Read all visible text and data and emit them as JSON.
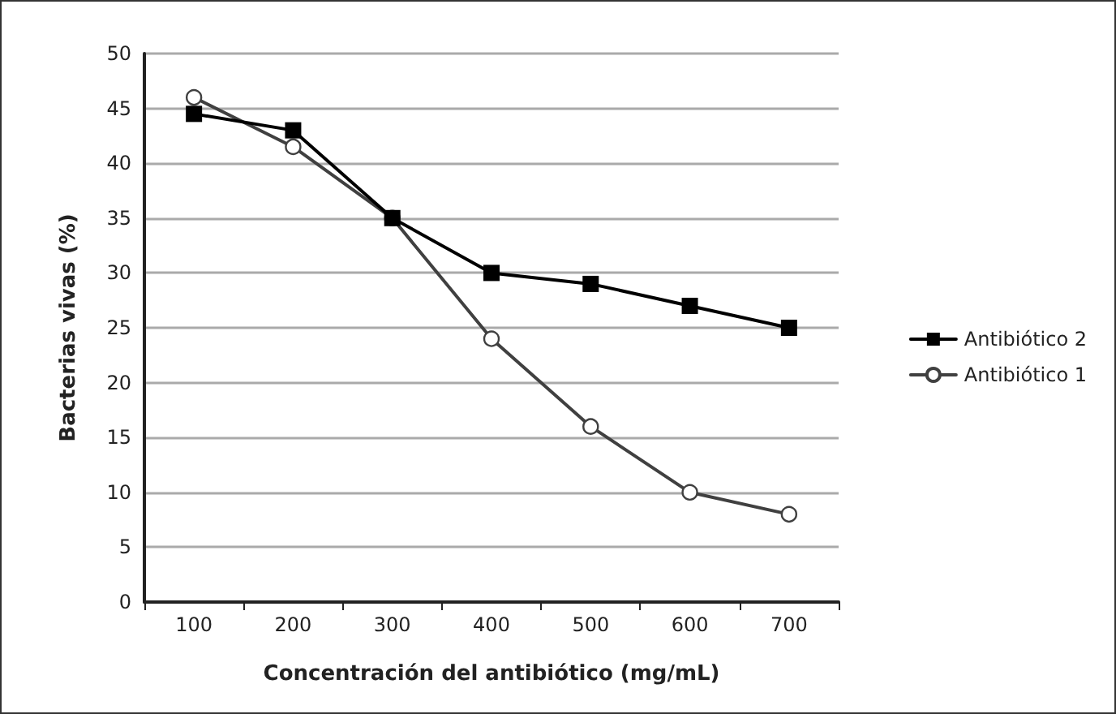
{
  "chart_data": {
    "type": "line",
    "xlabel": "Concentración del antibiótico (mg/mL)",
    "ylabel": "Bacterias vivas (%)",
    "categories": [
      "100",
      "200",
      "300",
      "400",
      "500",
      "600",
      "700"
    ],
    "series": [
      {
        "name": "Antibiótico 2",
        "color": "#000000",
        "marker": "square",
        "values": [
          44.5,
          43,
          35,
          30,
          29,
          27,
          25
        ]
      },
      {
        "name": "Antibiótico 1",
        "color": "#404040",
        "marker": "circle",
        "values": [
          46,
          41.5,
          35,
          24,
          16,
          10,
          8
        ]
      }
    ],
    "ylim": [
      0,
      50
    ],
    "yticks": [
      0,
      5,
      10,
      15,
      20,
      25,
      30,
      35,
      40,
      45,
      50
    ],
    "grid": "y",
    "legend": "right",
    "line_style": "solid"
  }
}
